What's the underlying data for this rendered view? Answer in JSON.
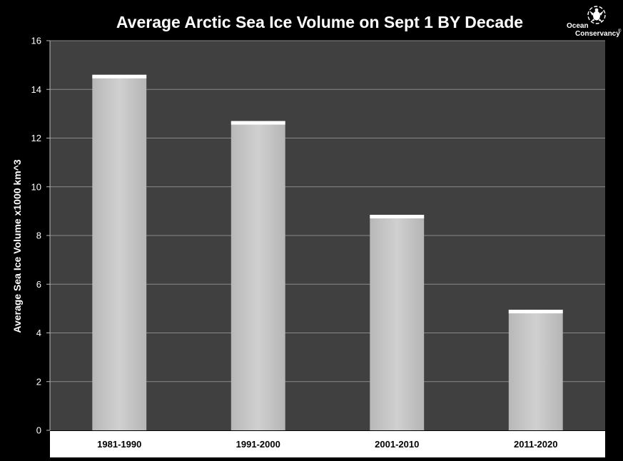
{
  "chart_data": {
    "type": "bar",
    "title": "Average Arctic Sea Ice Volume on Sept 1 BY Decade",
    "xlabel": "",
    "ylabel": "Average Sea Ice Volume x1000 km^3",
    "categories": [
      "1981-1990",
      "1991-2000",
      "2001-2010",
      "2011-2020"
    ],
    "values": [
      14.6,
      12.7,
      8.85,
      4.95
    ],
    "ylim": [
      0,
      16
    ],
    "yticks": [
      0,
      2,
      4,
      6,
      8,
      10,
      12,
      14,
      16
    ],
    "grid": true,
    "legend": "none"
  },
  "logo": {
    "line1": "Ocean",
    "line2": "Conservancy",
    "mark": "®",
    "icon": "sea-turtle-icon"
  },
  "colors": {
    "background": "#000000",
    "plot_area": "#404040",
    "gridline": "#8a8a8a",
    "bar_fill": "#c9c9c9",
    "bar_top": "#ffffff",
    "category_band": "#ffffff",
    "text": "#ffffff"
  }
}
